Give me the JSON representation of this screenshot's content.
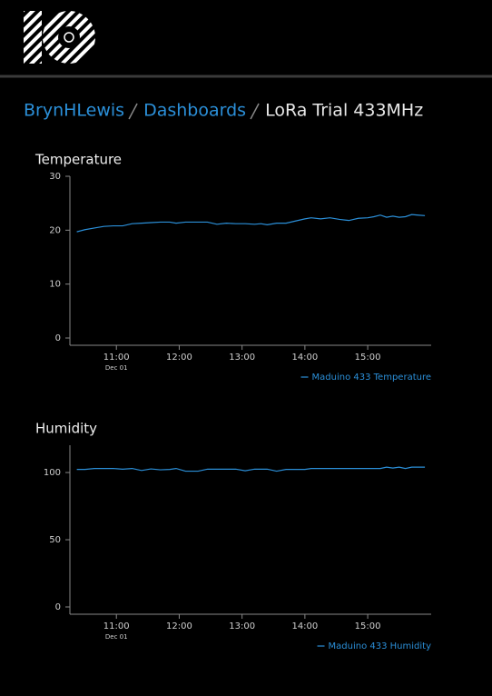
{
  "breadcrumb": [
    "BrynHLewis",
    "Dashboards",
    "LoRa Trial 433MHz"
  ],
  "chart_data": [
    {
      "type": "line",
      "title": "Temperature",
      "x": [
        10.37,
        10.5,
        10.65,
        10.8,
        10.95,
        11.1,
        11.25,
        11.4,
        11.55,
        11.7,
        11.85,
        11.95,
        12.1,
        12.3,
        12.45,
        12.6,
        12.75,
        12.9,
        13.05,
        13.2,
        13.3,
        13.4,
        13.55,
        13.7,
        13.85,
        14.0,
        14.1,
        14.25,
        14.4,
        14.55,
        14.7,
        14.85,
        15.0,
        15.1,
        15.2,
        15.3,
        15.4,
        15.5,
        15.6,
        15.7,
        15.8,
        15.91
      ],
      "series": [
        {
          "name": "Maduino 433 Temperature",
          "color": "#2b8fd8",
          "values": [
            19.7,
            20.1,
            20.4,
            20.7,
            20.8,
            20.8,
            21.2,
            21.3,
            21.4,
            21.5,
            21.5,
            21.3,
            21.5,
            21.5,
            21.5,
            21.1,
            21.3,
            21.2,
            21.2,
            21.1,
            21.2,
            21.0,
            21.3,
            21.3,
            21.7,
            22.1,
            22.3,
            22.1,
            22.3,
            22.0,
            21.8,
            22.2,
            22.3,
            22.5,
            22.8,
            22.4,
            22.6,
            22.4,
            22.5,
            22.9,
            22.8,
            22.7
          ]
        }
      ],
      "xlim": [
        10.26,
        16.01
      ],
      "xticks": [
        {
          "value": 11,
          "label": "11:00"
        },
        {
          "value": 12,
          "label": "12:00"
        },
        {
          "value": 13,
          "label": "13:00"
        },
        {
          "value": 14,
          "label": "14:00"
        },
        {
          "value": 15,
          "label": "15:00"
        }
      ],
      "xtick_sublabel": "Dec 01",
      "ylim": [
        -1.35,
        30
      ],
      "yticks": [
        0,
        10,
        20,
        30
      ],
      "grid": false,
      "legend": "bottom-right"
    },
    {
      "type": "line",
      "title": "Humidity",
      "x": [
        10.37,
        10.5,
        10.65,
        10.8,
        10.95,
        11.1,
        11.25,
        11.4,
        11.55,
        11.7,
        11.85,
        11.95,
        12.1,
        12.3,
        12.45,
        12.6,
        12.75,
        12.9,
        13.05,
        13.2,
        13.3,
        13.4,
        13.55,
        13.7,
        13.85,
        14.0,
        14.1,
        14.25,
        14.4,
        14.55,
        14.7,
        14.85,
        15.0,
        15.1,
        15.2,
        15.3,
        15.4,
        15.5,
        15.6,
        15.7,
        15.8,
        15.91
      ],
      "series": [
        {
          "name": "Maduino 433 Humidity",
          "color": "#2b8fd8",
          "values": [
            102.3,
            102.3,
            103,
            103,
            103,
            102.5,
            103,
            101.5,
            102.7,
            102,
            102.3,
            103,
            101,
            101,
            102.5,
            102.5,
            102.5,
            102.5,
            101.3,
            102.5,
            102.5,
            102.5,
            101,
            102.3,
            102.3,
            102.3,
            103,
            103,
            103,
            103,
            103,
            103,
            103,
            103,
            103,
            104,
            103.3,
            104,
            103,
            104,
            104,
            104
          ]
        }
      ],
      "xlim": [
        10.26,
        16.01
      ],
      "xticks": [
        {
          "value": 11,
          "label": "11:00"
        },
        {
          "value": 12,
          "label": "12:00"
        },
        {
          "value": 13,
          "label": "13:00"
        },
        {
          "value": 14,
          "label": "14:00"
        },
        {
          "value": 15,
          "label": "15:00"
        }
      ],
      "xtick_sublabel": "Dec 01",
      "ylim": [
        -5.4,
        120.3
      ],
      "yticks": [
        0,
        50,
        100
      ],
      "grid": false,
      "legend": "bottom-right"
    }
  ]
}
